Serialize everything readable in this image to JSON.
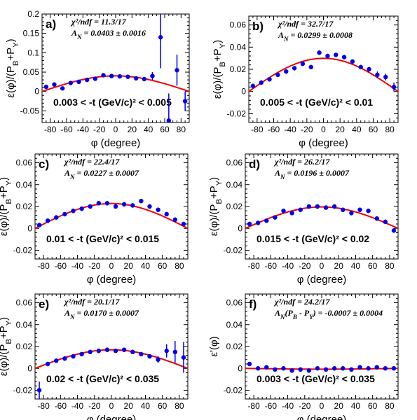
{
  "chart_data": [
    {
      "type": "scatter",
      "panel_label": "a)",
      "chi2": "χ²/ndf = 11.3/17",
      "an": "A_N = 0.0403 ± 0.0016",
      "t_range": "0.003 < -t (GeV/c)² < 0.005",
      "xlabel": "φ (degree)",
      "ylabel": "ε(φ)/(P_B+P_Y)",
      "xlim": [
        -90,
        90
      ],
      "ylim": [
        -0.08,
        0.2
      ],
      "xticks": [
        -80,
        -60,
        -40,
        -20,
        0,
        20,
        40,
        60,
        80
      ],
      "yticks": [
        -0.05,
        0,
        0.05,
        0.1,
        0.15,
        0.2
      ],
      "ytick_labels": [
        "-0.05",
        "0",
        "0.05",
        "0.1",
        "0.15",
        "0.2"
      ],
      "fit_amplitude": 0.0403,
      "x": [
        -85,
        -75,
        -65,
        -55,
        -45,
        -35,
        -25,
        -15,
        -5,
        5,
        15,
        25,
        35,
        45,
        55,
        65,
        75,
        85
      ],
      "y": [
        0.012,
        0.018,
        0.008,
        0.022,
        0.025,
        0.03,
        0.033,
        0.042,
        0.04,
        0.039,
        0.038,
        0.034,
        0.032,
        0.04,
        0.14,
        -0.075,
        0.055,
        -0.025
      ],
      "err": [
        0.005,
        0.005,
        0.005,
        0.005,
        0.005,
        0.005,
        0.005,
        0.005,
        0.005,
        0.005,
        0.005,
        0.005,
        0.005,
        0.01,
        0.08,
        0.07,
        0.04,
        0.025
      ]
    },
    {
      "type": "scatter",
      "panel_label": "b)",
      "chi2": "χ²/ndf = 32.7/17",
      "an": "A_N = 0.0299 ± 0.0008",
      "t_range": "0.005 < -t (GeV/c)² < 0.01",
      "xlabel": "φ (degree)",
      "ylabel": "ε(φ)/(P_B+P_Y)",
      "xlim": [
        -90,
        90
      ],
      "ylim": [
        -0.028,
        0.068
      ],
      "xticks": [
        -80,
        -60,
        -40,
        -20,
        0,
        20,
        40,
        60,
        80
      ],
      "yticks": [
        -0.02,
        0,
        0.02,
        0.04,
        0.06
      ],
      "ytick_labels": [
        "-0.02",
        "0",
        "0.02",
        "0.04",
        "0.06"
      ],
      "fit_amplitude": 0.0299,
      "x": [
        -85,
        -75,
        -65,
        -55,
        -45,
        -35,
        -25,
        -15,
        -5,
        5,
        15,
        25,
        35,
        45,
        55,
        65,
        75,
        85
      ],
      "y": [
        0.005,
        0.008,
        0.011,
        0.015,
        0.018,
        0.021,
        0.025,
        0.022,
        0.035,
        0.032,
        0.033,
        0.031,
        0.027,
        0.022,
        0.02,
        0.015,
        0.013,
        0.004
      ],
      "err": [
        0.002,
        0.002,
        0.002,
        0.002,
        0.002,
        0.002,
        0.002,
        0.002,
        0.002,
        0.002,
        0.002,
        0.002,
        0.002,
        0.002,
        0.002,
        0.003,
        0.003,
        0.004
      ]
    },
    {
      "type": "scatter",
      "panel_label": "c)",
      "chi2": "χ²/ndf = 22.4/17",
      "an": "A_N = 0.0227 ± 0.0007",
      "t_range": "0.01 < -t (GeV/c)² < 0.015",
      "xlabel": "φ (degree)",
      "ylabel": "ε(φ)/(P_B+P_Y)",
      "xlim": [
        -90,
        90
      ],
      "ylim": [
        -0.028,
        0.068
      ],
      "xticks": [
        -80,
        -60,
        -40,
        -20,
        0,
        20,
        40,
        60,
        80
      ],
      "yticks": [
        -0.02,
        0,
        0.02,
        0.04,
        0.06
      ],
      "ytick_labels": [
        "-0.02",
        "0",
        "0.02",
        "0.04",
        "0.06"
      ],
      "fit_amplitude": 0.0227,
      "x": [
        -85,
        -75,
        -65,
        -55,
        -45,
        -35,
        -25,
        -15,
        -5,
        5,
        15,
        25,
        35,
        45,
        55,
        65,
        75,
        85
      ],
      "y": [
        0.003,
        0.007,
        0.01,
        0.013,
        0.016,
        0.018,
        0.02,
        0.023,
        0.023,
        0.02,
        0.022,
        0.021,
        0.025,
        0.02,
        0.017,
        0.013,
        0.008,
        0.004
      ],
      "err": [
        0.002,
        0.002,
        0.002,
        0.002,
        0.002,
        0.002,
        0.002,
        0.002,
        0.002,
        0.002,
        0.002,
        0.002,
        0.002,
        0.002,
        0.002,
        0.002,
        0.002,
        0.002
      ]
    },
    {
      "type": "scatter",
      "panel_label": "d)",
      "chi2": "χ²/ndf = 26.2/17",
      "an": "A_N = 0.0196 ± 0.0007",
      "t_range": "0.015 < -t (GeV/c)² < 0.02",
      "xlabel": "φ (degree)",
      "ylabel": "ε(φ)/(P_B+P_Y)",
      "xlim": [
        -90,
        90
      ],
      "ylim": [
        -0.028,
        0.068
      ],
      "xticks": [
        -80,
        -60,
        -40,
        -20,
        0,
        20,
        40,
        60,
        80
      ],
      "yticks": [
        -0.02,
        0,
        0.02,
        0.04,
        0.06
      ],
      "ytick_labels": [
        "-0.02",
        "0",
        "0.02",
        "0.04",
        "0.06"
      ],
      "fit_amplitude": 0.0196,
      "x": [
        -85,
        -75,
        -65,
        -55,
        -45,
        -35,
        -25,
        -15,
        -5,
        5,
        15,
        25,
        35,
        45,
        55,
        65,
        75,
        85
      ],
      "y": [
        0.004,
        0.005,
        0.007,
        0.01,
        0.016,
        0.014,
        0.017,
        0.02,
        0.02,
        0.019,
        0.02,
        0.017,
        0.014,
        0.017,
        0.016,
        0.009,
        0.006,
        -0.002
      ],
      "err": [
        0.002,
        0.002,
        0.002,
        0.002,
        0.002,
        0.002,
        0.002,
        0.002,
        0.002,
        0.002,
        0.002,
        0.002,
        0.002,
        0.002,
        0.002,
        0.002,
        0.002,
        0.002
      ]
    },
    {
      "type": "scatter",
      "panel_label": "e)",
      "chi2": "χ²/ndf = 20.1/17",
      "an": "A_N = 0.0170 ± 0.0007",
      "t_range": "0.02 < -t (GeV/c)² < 0.035",
      "xlabel": "φ (degree)",
      "ylabel": "ε(φ)/(P_B+P_Y)",
      "xlim": [
        -90,
        90
      ],
      "ylim": [
        -0.028,
        0.068
      ],
      "xticks": [
        -80,
        -60,
        -40,
        -20,
        0,
        20,
        40,
        60,
        80
      ],
      "yticks": [
        -0.02,
        0,
        0.02,
        0.04,
        0.06
      ],
      "ytick_labels": [
        "-0.02",
        "0",
        "0.02",
        "0.04",
        "0.06"
      ],
      "fit_amplitude": 0.017,
      "x": [
        -85,
        -75,
        -65,
        -55,
        -45,
        -35,
        -25,
        -15,
        -5,
        5,
        15,
        25,
        35,
        45,
        55,
        65,
        75,
        85
      ],
      "y": [
        -0.02,
        0.004,
        0.007,
        0.009,
        0.011,
        0.013,
        0.015,
        0.016,
        0.017,
        0.016,
        0.017,
        0.015,
        0.013,
        0.011,
        0.008,
        0.016,
        0.015,
        0.01
      ],
      "err": [
        0.008,
        0.002,
        0.002,
        0.002,
        0.002,
        0.002,
        0.002,
        0.002,
        0.002,
        0.002,
        0.002,
        0.002,
        0.002,
        0.002,
        0.003,
        0.006,
        0.01,
        0.014
      ]
    },
    {
      "type": "scatter",
      "panel_label": "f)",
      "chi2": "χ²/ndf = 24.2/17",
      "an": "A_N(P_B - P_Y) = -0.0007 ± 0.0004",
      "t_range": "0.003 < -t (GeV/c)² < 0.035",
      "xlabel": "φ (degree)",
      "ylabel": "ε'(φ)",
      "xlim": [
        -90,
        90
      ],
      "ylim": [
        -0.028,
        0.068
      ],
      "xticks": [
        -80,
        -60,
        -40,
        -20,
        0,
        20,
        40,
        60,
        80
      ],
      "yticks": [
        -0.02,
        0,
        0.02,
        0.04,
        0.06
      ],
      "ytick_labels": [
        "-0.02",
        "0",
        "0.02",
        "0.04",
        "0.06"
      ],
      "fit_amplitude": -0.0007,
      "x": [
        -85,
        -75,
        -65,
        -55,
        -45,
        -35,
        -25,
        -15,
        -5,
        5,
        15,
        25,
        35,
        45,
        55,
        65,
        75,
        85
      ],
      "y": [
        0.004,
        0.0,
        0.001,
        -0.001,
        0.0,
        -0.002,
        -0.001,
        -0.002,
        0.0,
        -0.001,
        0.0,
        0.0,
        -0.001,
        0.001,
        0.0,
        0.001,
        0.0,
        0.0
      ],
      "err": [
        0.001,
        0.001,
        0.001,
        0.001,
        0.001,
        0.001,
        0.001,
        0.001,
        0.001,
        0.001,
        0.001,
        0.001,
        0.001,
        0.001,
        0.001,
        0.001,
        0.001,
        0.001
      ]
    }
  ]
}
